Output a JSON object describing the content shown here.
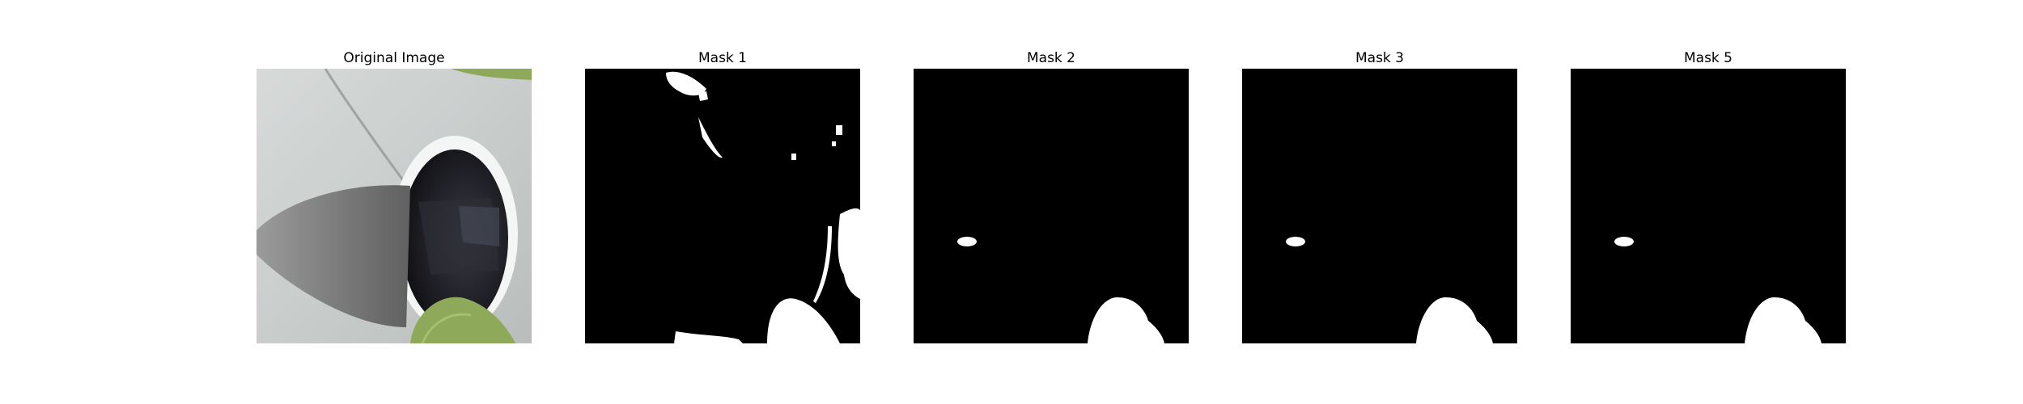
{
  "figure": {
    "panels": [
      {
        "title": "Original Image",
        "kind": "photo"
      },
      {
        "title": "Mask 1",
        "kind": "mask"
      },
      {
        "title": "Mask 2",
        "kind": "mask"
      },
      {
        "title": "Mask 3",
        "kind": "mask"
      },
      {
        "title": "Mask 5",
        "kind": "mask"
      }
    ],
    "colors": {
      "mask_background": "#000000",
      "mask_foreground": "#ffffff",
      "photo_surface": "#cfd3d2",
      "photo_shadow": "#7d7e7d",
      "photo_dark": "#1c1c22",
      "photo_leaf": "#8fa95a"
    }
  }
}
